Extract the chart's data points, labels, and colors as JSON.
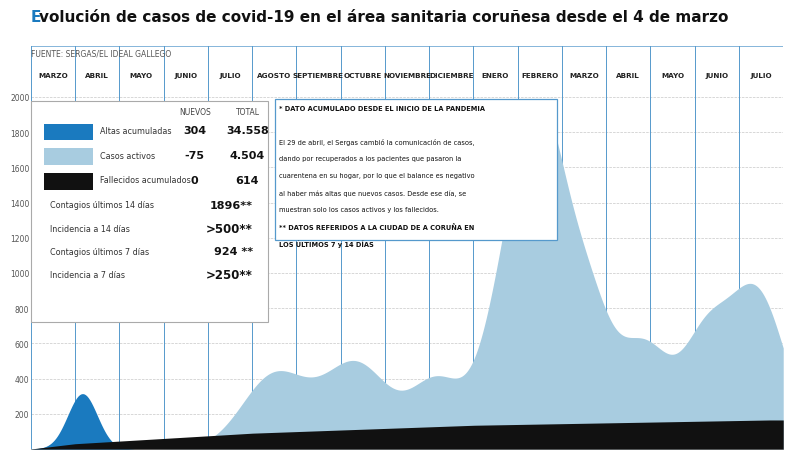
{
  "title": "volución de casos de covid-19 en el área sanitaria coruñesa desde el 4 de marzo",
  "title_prefix": "E",
  "source": "FUENTE: SERGAS/EL IDEAL GALLEGO",
  "background_color": "#ffffff",
  "plot_bg_color": "#ffffff",
  "grid_color": "#c8c8c8",
  "months": [
    "MARZO",
    "ABRIL",
    "MAYO",
    "JUNIO",
    "JULIO",
    "AGOSTO",
    "SEPTIEMBRE",
    "OCTUBRE",
    "NOVIEMBRE",
    "DICIEMBRE",
    "ENERO",
    "FEBRERO",
    "MARZO",
    "ABRIL",
    "MAYO",
    "JUNIO",
    "JULIO"
  ],
  "color_altas": "#1a7abf",
  "color_activos": "#a8cce0",
  "color_fallecidos": "#111111",
  "ylim": [
    0,
    2000
  ],
  "yticks": [
    200,
    400,
    600,
    800,
    1000,
    1200,
    1400,
    1600,
    1800,
    2000
  ],
  "note_line1": "* DATO ACUMULADO DESDE EL INICIO DE LA PANDEMIA",
  "note_line2": "El 29 de abril, el Sergas cambió la comunicación de casos,",
  "note_line3": "dando por recuperados a los pacientes que pasaron la",
  "note_line4": "cuarentena en su hogar, por lo que el balance es negativo",
  "note_line5": "al haber más altas que nuevos casos. Desde ese día, se",
  "note_line6": "muestran solo los casos activos y los fallecidos.",
  "note_line7": "** DATOS REFERIDOS A LA CIUDAD DE A CORUÑA EN",
  "note_line8": "LOS ÚLTIMOS 7 y 14 DÍAS"
}
